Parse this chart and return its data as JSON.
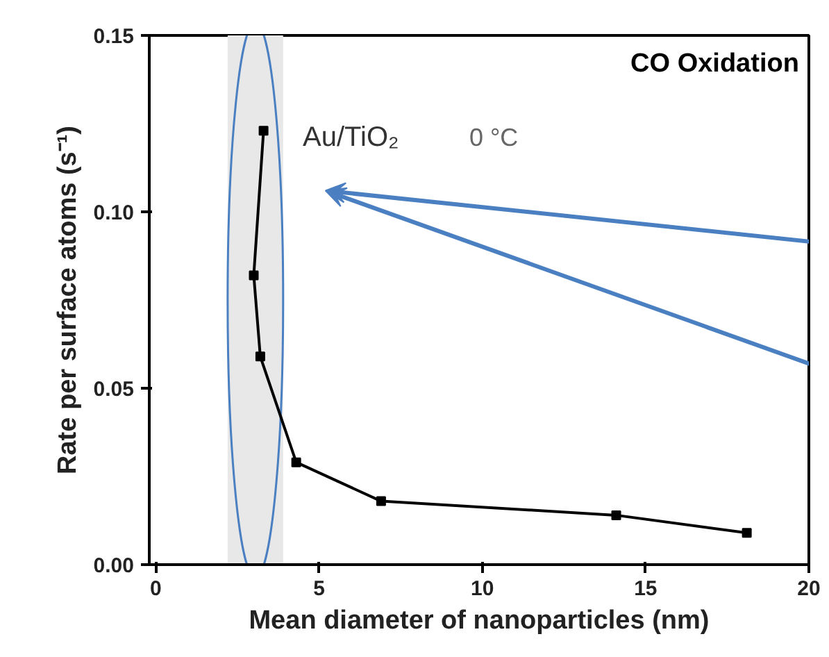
{
  "chart_data": {
    "type": "line",
    "xlabel": "Mean diameter of nanoparticles (nm)",
    "ylabel": "Rate per surface atoms (s⁻¹)",
    "annotations": [
      "CO Oxidation",
      "Au/TiO₂",
      "0 °C"
    ],
    "x": [
      3.3,
      3.0,
      3.2,
      4.3,
      6.9,
      14.1,
      18.1
    ],
    "series": [
      {
        "color": "#000000",
        "values": [
          0.123,
          0.082,
          0.059,
          0.029,
          0.018,
          0.014,
          0.009
        ]
      }
    ],
    "xlim": [
      -0.2,
      20
    ],
    "ylim": [
      0,
      0.15
    ],
    "xticks": [
      0,
      5,
      10,
      15,
      20
    ],
    "yticks": [
      {
        "value": 0,
        "label": "0.00"
      },
      0.05,
      {
        "value": 0.1,
        "label": "0.10"
      },
      0.15
    ],
    "bands": [
      {
        "axis": "x",
        "from": 2.2,
        "to": 3.9,
        "color": "#e8e8e8"
      }
    ],
    "marker": "square",
    "grid": false
  }
}
